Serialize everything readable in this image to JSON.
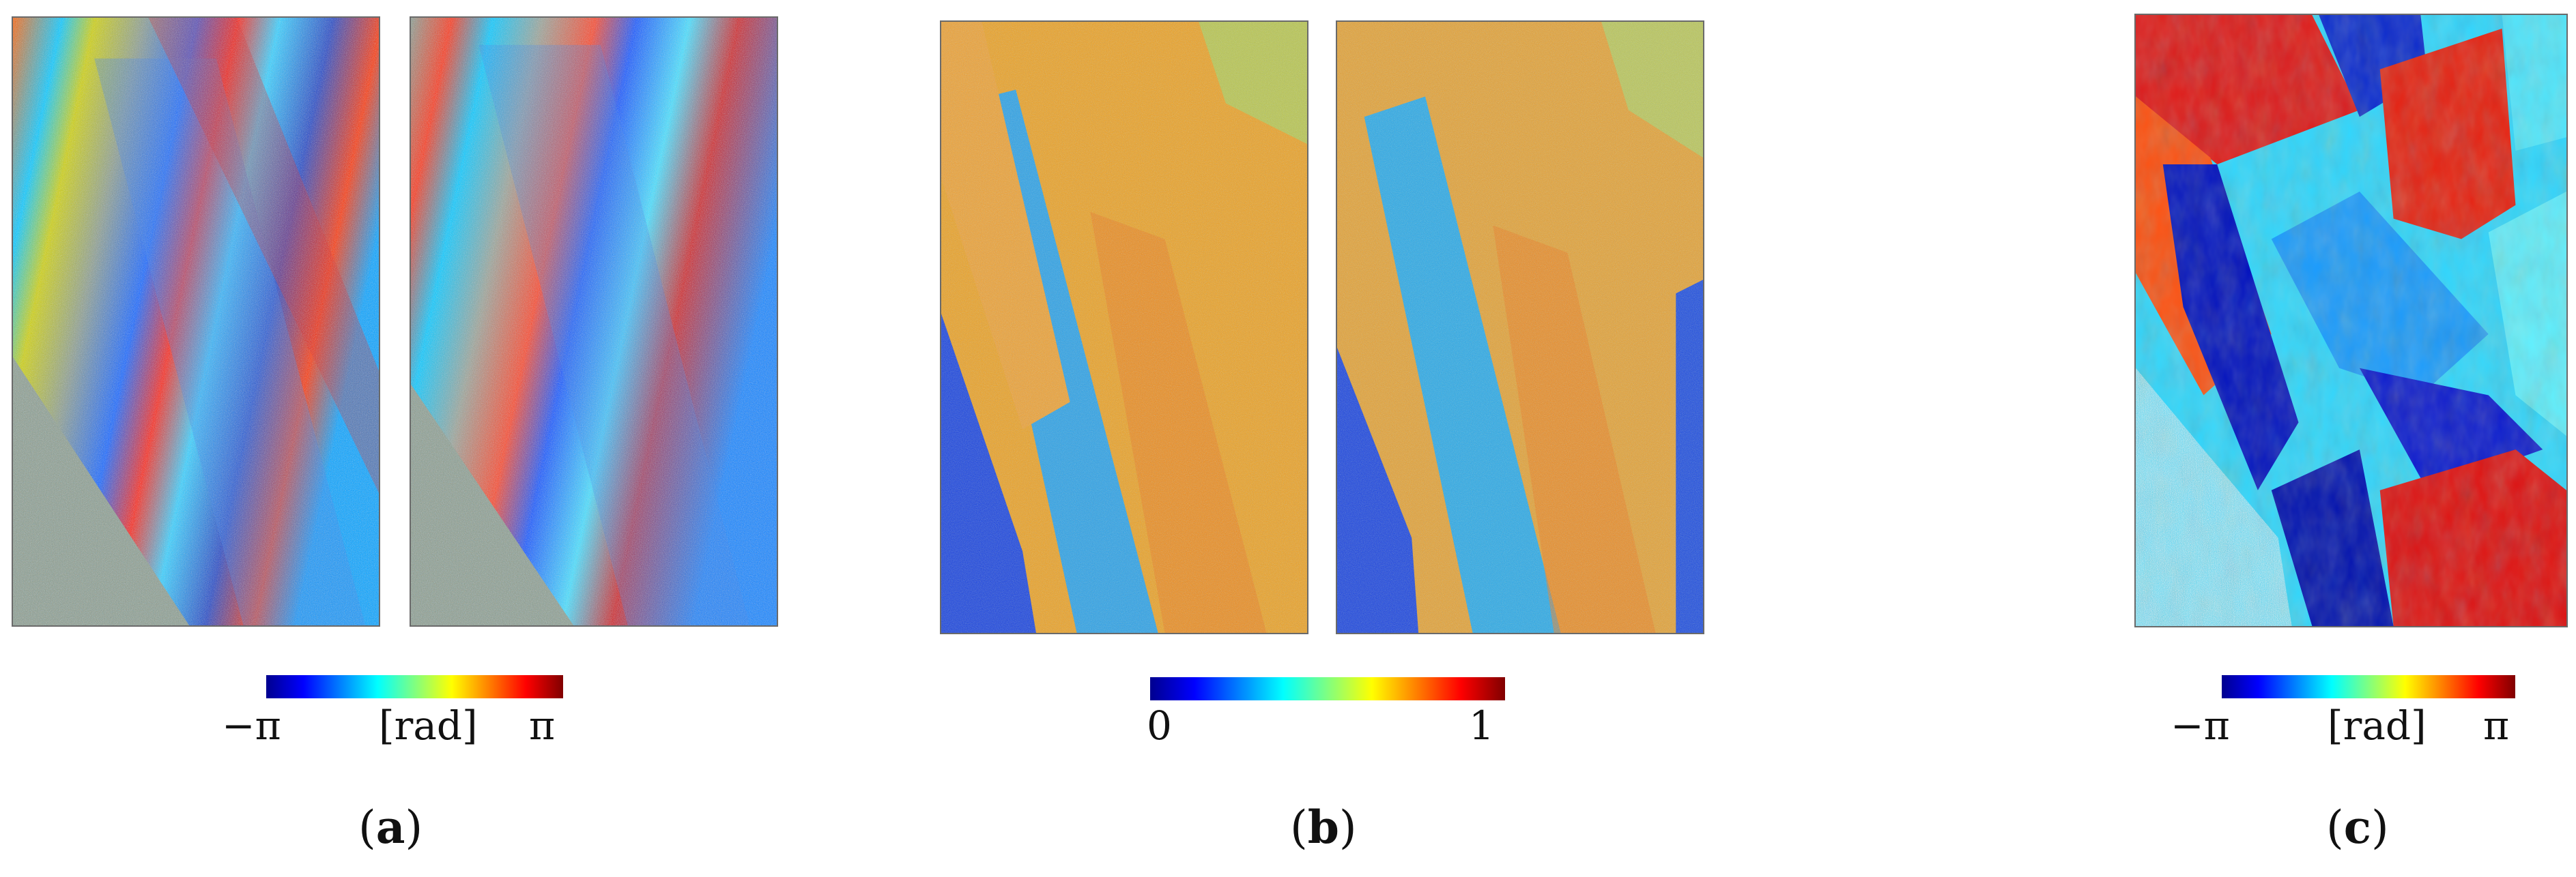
{
  "panels": {
    "a": {
      "caption_open": "(",
      "caption_letter": "a",
      "caption_close": ")",
      "colorbar": {
        "min_label": "−π",
        "unit_label": "[rad]",
        "max_label": "π"
      }
    },
    "b": {
      "caption_open": "(",
      "caption_letter": "b",
      "caption_close": ")",
      "colorbar": {
        "min_label": "0",
        "max_label": "1"
      }
    },
    "c": {
      "caption_open": "(",
      "caption_letter": "c",
      "caption_close": ")",
      "colorbar": {
        "min_label": "−π",
        "unit_label": "[rad]",
        "max_label": "π"
      }
    }
  },
  "colormap": [
    "#00008f",
    "#0000ff",
    "#0080ff",
    "#00ffff",
    "#80ff80",
    "#ffff00",
    "#ff8000",
    "#ff0000",
    "#800000"
  ]
}
